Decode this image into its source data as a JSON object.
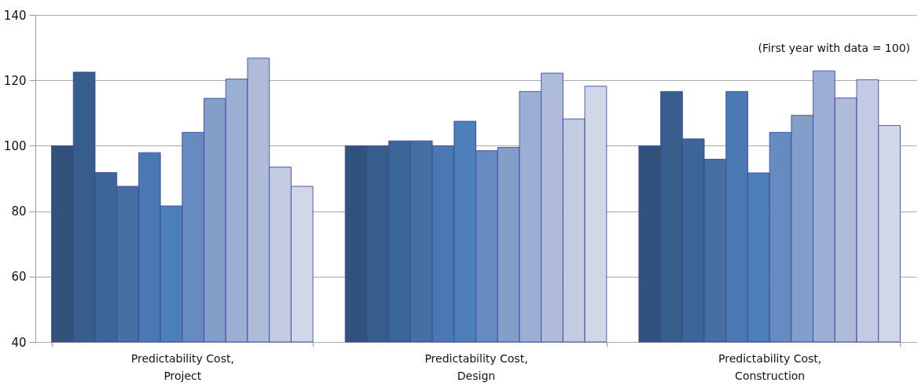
{
  "chart_data": {
    "type": "bar",
    "categories": [
      "Predictability Cost, Project",
      "Predictability Cost, Design",
      "Predictability Cost, Construction"
    ],
    "series": [
      {
        "color": "#31537b",
        "values": [
          100,
          100,
          100
        ]
      },
      {
        "color": "#375d8b",
        "values": [
          122.5,
          100,
          116.6
        ]
      },
      {
        "color": "#3c6698",
        "values": [
          91.8,
          101.5,
          102.1
        ]
      },
      {
        "color": "#466fa2",
        "values": [
          87.6,
          101.5,
          95.9
        ]
      },
      {
        "color": "#4a78b2",
        "values": [
          97.9,
          100,
          116.6
        ]
      },
      {
        "color": "#4d7fb9",
        "values": [
          81.6,
          107.5,
          91.7
        ]
      },
      {
        "color": "#658bc0",
        "values": [
          104.1,
          98.5,
          104.1
        ]
      },
      {
        "color": "#839fc9",
        "values": [
          114.5,
          99.5,
          109.3
        ]
      },
      {
        "color": "#9aafd3",
        "values": [
          120.4,
          116.6,
          122.9
        ]
      },
      {
        "color": "#aebcd9",
        "values": [
          126.8,
          122.2,
          114.6
        ]
      },
      {
        "color": "#c2cbe1",
        "values": [
          93.5,
          108.2,
          120.2
        ]
      },
      {
        "color": "#d0d7e7",
        "values": [
          87.6,
          118.2,
          106.2
        ]
      }
    ],
    "ylim": [
      40,
      140
    ],
    "yticks": [
      40,
      60,
      80,
      100,
      120,
      140
    ],
    "grid": "y",
    "annotations": [
      "(First year with data = 100)"
    ]
  }
}
